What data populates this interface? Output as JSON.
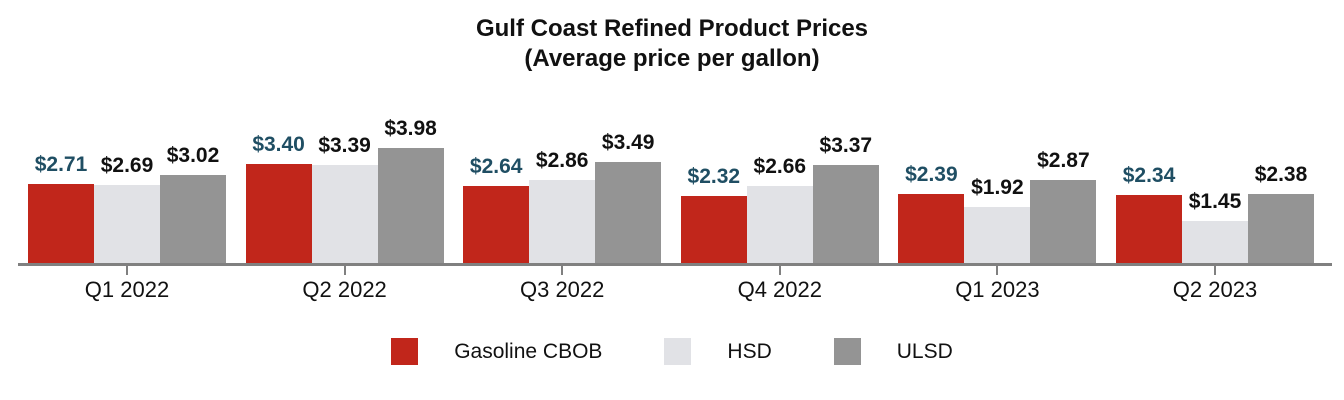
{
  "title": {
    "line1": "Gulf Coast Refined Product Prices",
    "line2": "(Average price per gallon)"
  },
  "chart_data": {
    "type": "bar",
    "title": "Gulf Coast Refined Product Prices",
    "subtitle": "(Average price per gallon)",
    "categories": [
      "Q1 2022",
      "Q2 2022",
      "Q3 2022",
      "Q4 2022",
      "Q1 2023",
      "Q2 2023"
    ],
    "series": [
      {
        "name": "Gasoline CBOB",
        "color": "#C1261B",
        "label_color": "#1F4E63",
        "values": [
          2.71,
          3.4,
          2.64,
          2.32,
          2.39,
          2.34
        ],
        "labels": [
          "$2.71",
          "$3.40",
          "$2.64",
          "$2.32",
          "$2.39",
          "$2.34"
        ]
      },
      {
        "name": "HSD",
        "color": "#E1E2E6",
        "label_color": "#111111",
        "values": [
          2.69,
          3.39,
          2.86,
          2.66,
          1.92,
          1.45
        ],
        "labels": [
          "$2.69",
          "$3.39",
          "$2.86",
          "$2.66",
          "$1.92",
          "$1.45"
        ]
      },
      {
        "name": "ULSD",
        "color": "#949494",
        "label_color": "#111111",
        "values": [
          3.02,
          3.98,
          3.49,
          3.37,
          2.87,
          2.38
        ],
        "labels": [
          "$3.02",
          "$3.98",
          "$3.49",
          "$3.37",
          "$2.87",
          "$2.38"
        ]
      }
    ],
    "value_prefix": "$",
    "xlabel": "",
    "ylabel": "",
    "ylim": [
      0,
      4.2
    ],
    "grid": false,
    "axis_color": "#808080",
    "legend_position": "bottom"
  }
}
